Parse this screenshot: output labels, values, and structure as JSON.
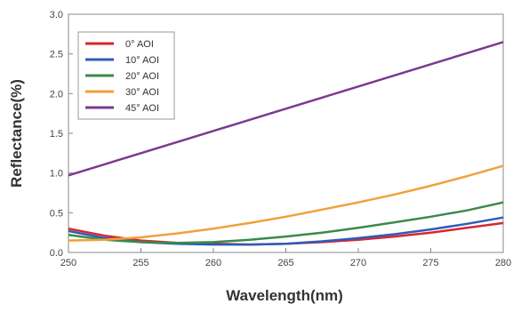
{
  "chart_data": {
    "type": "line",
    "title": "",
    "xlabel": "Wavelength(nm)",
    "ylabel": "Reflectance(%)",
    "xlim": [
      250,
      280
    ],
    "ylim": [
      0,
      3.0
    ],
    "x_ticks": [
      "250",
      "255",
      "260",
      "265",
      "270",
      "275",
      "280"
    ],
    "y_ticks": [
      "0.0",
      "0.5",
      "1.0",
      "1.5",
      "2.0",
      "2.5",
      "3.0"
    ],
    "grid": false,
    "legend_position": "top-left",
    "x": [
      250,
      252.5,
      255,
      257.5,
      260,
      262.5,
      265,
      267.5,
      270,
      272.5,
      275,
      277.5,
      280
    ],
    "series": [
      {
        "name": "0° AOI",
        "color": "#d8262e",
        "values": [
          0.3,
          0.21,
          0.15,
          0.12,
          0.11,
          0.1,
          0.11,
          0.13,
          0.16,
          0.2,
          0.25,
          0.31,
          0.37
        ]
      },
      {
        "name": "10° AOI",
        "color": "#2e5cb8",
        "values": [
          0.27,
          0.18,
          0.13,
          0.11,
          0.1,
          0.1,
          0.11,
          0.14,
          0.18,
          0.23,
          0.29,
          0.36,
          0.44
        ]
      },
      {
        "name": "20° AOI",
        "color": "#3a8a4a",
        "values": [
          0.22,
          0.16,
          0.13,
          0.12,
          0.13,
          0.16,
          0.2,
          0.25,
          0.31,
          0.38,
          0.45,
          0.53,
          0.63
        ]
      },
      {
        "name": "30° AOI",
        "color": "#f2a03a",
        "values": [
          0.15,
          0.16,
          0.19,
          0.24,
          0.3,
          0.37,
          0.45,
          0.54,
          0.63,
          0.73,
          0.84,
          0.96,
          1.09
        ]
      },
      {
        "name": "45° AOI",
        "color": "#7b3a8e",
        "values": [
          0.97,
          1.11,
          1.25,
          1.39,
          1.53,
          1.67,
          1.81,
          1.95,
          2.09,
          2.23,
          2.37,
          2.51,
          2.65
        ]
      }
    ]
  }
}
